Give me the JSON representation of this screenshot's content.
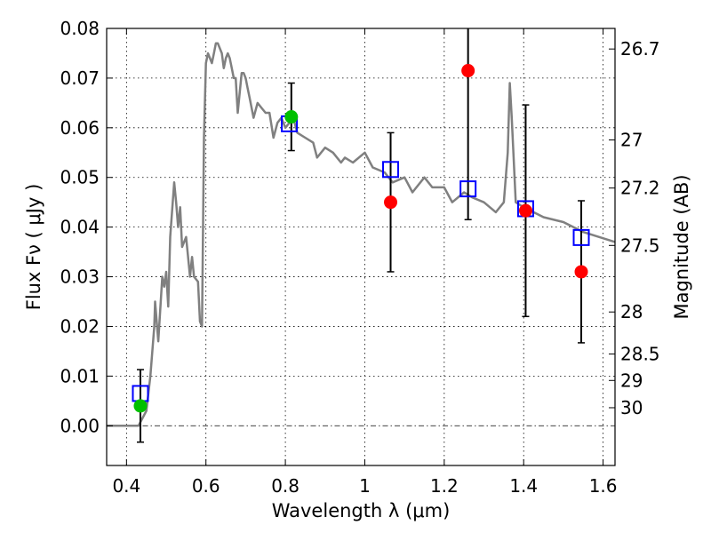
{
  "chart_data": {
    "type": "scatter",
    "xlabel": "Wavelength  λ (μm)",
    "ylabel": "Flux  Fν ( μJy )",
    "ylabel_right": "Magnitude (AB)",
    "xlim": [
      0.35,
      1.63
    ],
    "ylim": [
      -0.008,
      0.08
    ],
    "grid": true,
    "x_ticks": [
      0.4,
      0.6,
      0.8,
      1.0,
      1.2,
      1.4,
      1.6
    ],
    "x_tick_labels": [
      "0.4",
      "0.6",
      "0.8",
      "1",
      "1.2",
      "1.4",
      "1.6"
    ],
    "y_ticks": [
      0.0,
      0.01,
      0.02,
      0.03,
      0.04,
      0.05,
      0.06,
      0.07,
      0.08
    ],
    "y_tick_labels": [
      "0.00",
      "0.01",
      "0.02",
      "0.03",
      "0.04",
      "0.05",
      "0.06",
      "0.07",
      "0.08"
    ],
    "mag_ticks": [
      {
        "label": "26.7",
        "mag": 26.7
      },
      {
        "label": "27",
        "mag": 27.0
      },
      {
        "label": "27.2",
        "mag": 27.2
      },
      {
        "label": "27.5",
        "mag": 27.5
      },
      {
        "label": "28",
        "mag": 28.0
      },
      {
        "label": "28.5",
        "mag": 28.5
      },
      {
        "label": "29",
        "mag": 29.0
      },
      {
        "label": "30",
        "mag": 30.0
      }
    ],
    "series": [
      {
        "kind": "model_spectrum",
        "color": "#808080",
        "x": [
          0.35,
          0.4,
          0.43,
          0.45,
          0.46,
          0.47,
          0.472,
          0.48,
          0.49,
          0.495,
          0.5,
          0.505,
          0.51,
          0.52,
          0.525,
          0.53,
          0.535,
          0.54,
          0.55,
          0.56,
          0.565,
          0.57,
          0.58,
          0.585,
          0.59,
          0.595,
          0.6,
          0.605,
          0.61,
          0.615,
          0.62,
          0.625,
          0.63,
          0.64,
          0.645,
          0.65,
          0.655,
          0.66,
          0.665,
          0.67,
          0.675,
          0.68,
          0.69,
          0.695,
          0.7,
          0.705,
          0.71,
          0.72,
          0.73,
          0.74,
          0.75,
          0.76,
          0.77,
          0.78,
          0.79,
          0.8,
          0.81,
          0.82,
          0.83,
          0.85,
          0.87,
          0.88,
          0.9,
          0.92,
          0.94,
          0.95,
          0.97,
          1.0,
          1.02,
          1.05,
          1.07,
          1.1,
          1.12,
          1.15,
          1.17,
          1.2,
          1.22,
          1.25,
          1.27,
          1.3,
          1.33,
          1.35,
          1.36,
          1.365,
          1.37,
          1.38,
          1.4,
          1.45,
          1.5,
          1.55,
          1.63
        ],
        "y": [
          0.0,
          0.0,
          0.0,
          0.003,
          0.01,
          0.02,
          0.025,
          0.017,
          0.03,
          0.028,
          0.031,
          0.024,
          0.038,
          0.049,
          0.045,
          0.04,
          0.044,
          0.036,
          0.038,
          0.03,
          0.034,
          0.03,
          0.029,
          0.021,
          0.02,
          0.058,
          0.073,
          0.075,
          0.074,
          0.073,
          0.075,
          0.077,
          0.077,
          0.075,
          0.072,
          0.074,
          0.075,
          0.074,
          0.072,
          0.07,
          0.07,
          0.063,
          0.071,
          0.071,
          0.07,
          0.068,
          0.066,
          0.062,
          0.065,
          0.064,
          0.063,
          0.063,
          0.058,
          0.061,
          0.062,
          0.06,
          0.061,
          0.062,
          0.059,
          0.058,
          0.057,
          0.054,
          0.056,
          0.055,
          0.053,
          0.054,
          0.053,
          0.055,
          0.052,
          0.051,
          0.049,
          0.05,
          0.047,
          0.05,
          0.048,
          0.048,
          0.045,
          0.047,
          0.046,
          0.045,
          0.043,
          0.045,
          0.055,
          0.069,
          0.062,
          0.045,
          0.044,
          0.042,
          0.041,
          0.039,
          0.037
        ]
      },
      {
        "kind": "model_photometry",
        "color": "#0000ff",
        "marker": "open-square",
        "x": [
          0.435,
          0.81,
          1.065,
          1.26,
          1.405,
          1.545
        ],
        "y": [
          0.0065,
          0.0608,
          0.0516,
          0.0477,
          0.0437,
          0.0379
        ]
      },
      {
        "kind": "observed",
        "color": "#ff0000",
        "marker": "filled-circle",
        "x": [
          1.065,
          1.26,
          1.405,
          1.545
        ],
        "y": [
          0.045,
          0.0715,
          0.0433,
          0.031
        ],
        "yerr": [
          0.014,
          0.03,
          0.0213,
          0.0143
        ]
      },
      {
        "kind": "observed",
        "color": "#00c000",
        "marker": "filled-circle",
        "x": [
          0.435,
          0.815
        ],
        "y": [
          0.004,
          0.0622
        ],
        "yerr": [
          0.0073,
          0.0068
        ]
      }
    ]
  }
}
